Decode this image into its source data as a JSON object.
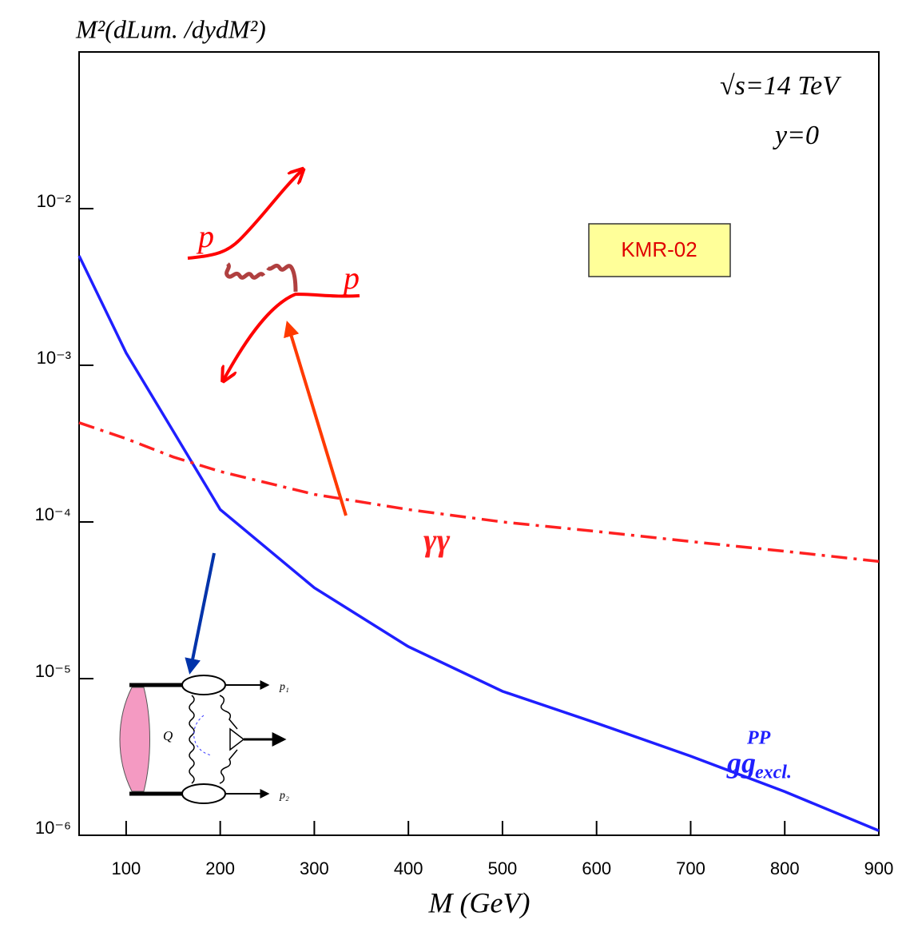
{
  "chart_data": {
    "type": "line",
    "y_label": "M²(dLum. /dydM²)",
    "x_label": "M (GeV)",
    "log_y": true,
    "xlim": [
      50,
      900
    ],
    "xticks": [
      100,
      200,
      300,
      400,
      500,
      600,
      700,
      800,
      900
    ],
    "ylim": [
      1e-06,
      0.1
    ],
    "yticks": [
      {
        "value": 0.01,
        "label": "10⁻²"
      },
      {
        "value": 0.001,
        "label": "10⁻³"
      },
      {
        "value": 0.0001,
        "label": "10⁻⁴"
      },
      {
        "value": 1e-05,
        "label": "10⁻⁵"
      },
      {
        "value": 1e-06,
        "label": "10⁻⁶"
      }
    ],
    "x": [
      50,
      100,
      150,
      200,
      300,
      400,
      500,
      600,
      700,
      800,
      900
    ],
    "series": [
      {
        "name": "gg",
        "color": "#1f1fff",
        "style": "solid",
        "values": [
          0.005,
          0.0012,
          0.00038,
          0.00012,
          3.8e-05,
          1.6e-05,
          8.3e-06,
          5.2e-06,
          3.2e-06,
          1.9e-06,
          1.07e-06
        ]
      },
      {
        "name": "γγ",
        "color": "#ff2020",
        "style": "dash-dot",
        "values": [
          0.00043,
          0.00034,
          0.00026,
          0.00021,
          0.00015,
          0.00012,
          0.0001,
          8.7e-05,
          7.5e-05,
          6.5e-05,
          5.6e-05
        ]
      }
    ],
    "annotations": {
      "energy": "√s=14 TeV",
      "rapidity": "y=0",
      "model": "KMR-02",
      "gg_sup": "PP",
      "gg_sub": "excl.",
      "proton_1": "p",
      "proton_2": "p",
      "loop": "Q",
      "out_1": "p₁",
      "out_2": "p₂"
    }
  }
}
